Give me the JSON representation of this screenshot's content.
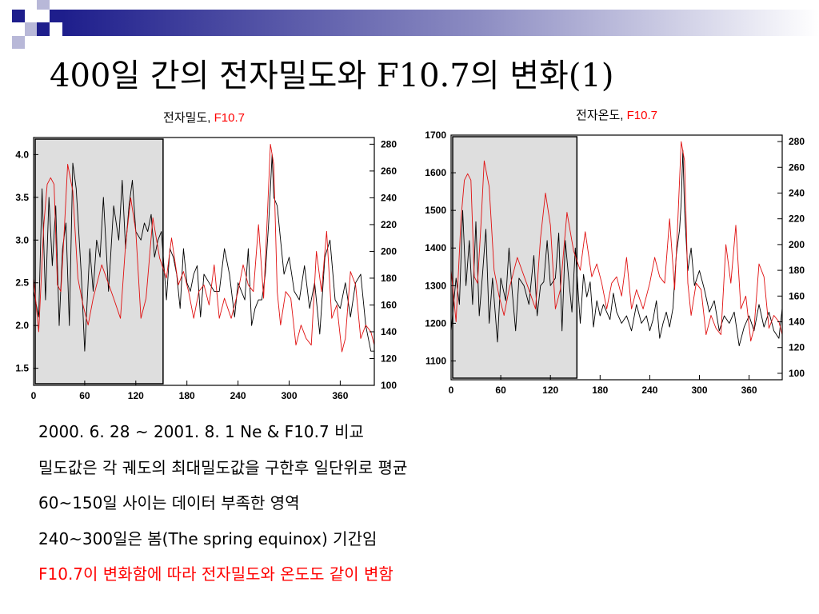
{
  "slide": {
    "title": "400일 간의 전자밀도와 F10.7의 변화(1)",
    "bullets": [
      {
        "text": "2000. 6. 28 ~ 2001. 8. 1 Ne & F10.7 비교",
        "color": "#000000"
      },
      {
        "text": "밀도값은 각 궤도의 최대밀도값을 구한후 일단위로 평균",
        "color": "#000000"
      },
      {
        "text": "60~150일 사이는 데이터 부족한 영역",
        "color": "#000000"
      },
      {
        "text": "240~300일은 봄(The spring equinox) 기간임",
        "color": "#000000"
      },
      {
        "text": "F10.7이 변화함에 따라 전자밀도와 온도도 같이 변함",
        "color": "#ff0000"
      }
    ]
  },
  "chart_data": [
    {
      "type": "line",
      "title_parts": [
        {
          "text": "전자밀도, ",
          "color": "#000000"
        },
        {
          "text": "F10.7",
          "color": "#ff0000"
        }
      ],
      "xlim": [
        0,
        400
      ],
      "ylim_left": [
        1.3,
        4.2
      ],
      "ylim_right": [
        100,
        285
      ],
      "x_ticks": [
        0,
        60,
        120,
        180,
        240,
        300,
        360
      ],
      "y_ticks_left": [
        1.5,
        2.0,
        2.5,
        3.0,
        3.5,
        4.0
      ],
      "y_tick_labels_left": [
        "1.5",
        "2.0",
        "2.5",
        "3.0",
        "3.5",
        "4.0"
      ],
      "y_ticks_right": [
        100,
        120,
        140,
        160,
        180,
        200,
        220,
        240,
        260,
        280
      ],
      "shaded_x": [
        0,
        152
      ],
      "shade_color": "#dedede",
      "series": [
        {
          "axis": "left",
          "color": "#000000",
          "x": [
            0,
            6,
            10,
            14,
            18,
            22,
            26,
            30,
            34,
            38,
            42,
            46,
            50,
            56,
            60,
            66,
            70,
            74,
            78,
            82,
            88,
            94,
            100,
            104,
            108,
            112,
            116,
            120,
            126,
            130,
            134,
            138,
            142,
            146,
            150,
            156,
            160,
            164,
            168,
            172,
            176,
            180,
            184,
            188,
            192,
            196,
            200,
            206,
            212,
            218,
            224,
            230,
            236,
            240,
            244,
            248,
            252,
            256,
            260,
            264,
            268,
            272,
            276,
            278,
            280,
            282,
            286,
            290,
            294,
            300,
            306,
            312,
            318,
            324,
            330,
            336,
            342,
            348,
            354,
            360,
            366,
            372,
            378,
            384,
            390,
            396,
            400
          ],
          "y": [
            2.4,
            2.1,
            3.6,
            2.3,
            3.5,
            2.7,
            3.4,
            2.0,
            2.9,
            3.2,
            2.0,
            3.9,
            3.6,
            2.6,
            1.7,
            2.9,
            2.4,
            3.0,
            2.8,
            3.5,
            2.4,
            3.4,
            3.0,
            3.7,
            2.9,
            3.4,
            3.7,
            3.1,
            3.0,
            3.2,
            3.1,
            3.3,
            2.8,
            3.0,
            3.1,
            2.3,
            2.9,
            2.8,
            2.6,
            2.2,
            2.9,
            2.5,
            2.4,
            2.6,
            2.7,
            2.1,
            2.6,
            2.5,
            2.4,
            2.4,
            2.9,
            2.6,
            2.1,
            2.5,
            2.4,
            2.3,
            2.9,
            2.0,
            2.2,
            2.3,
            2.3,
            2.6,
            3.2,
            3.6,
            4.0,
            3.5,
            3.4,
            3.0,
            2.6,
            2.8,
            2.4,
            2.3,
            2.7,
            2.2,
            2.5,
            1.9,
            2.8,
            3.0,
            2.3,
            2.2,
            2.5,
            2.1,
            2.5,
            2.6,
            2.0,
            1.7,
            1.7
          ]
        },
        {
          "axis": "right",
          "color": "#e01010",
          "x": [
            0,
            6,
            12,
            16,
            20,
            24,
            28,
            32,
            36,
            40,
            46,
            52,
            58,
            64,
            70,
            80,
            94,
            102,
            108,
            114,
            120,
            126,
            132,
            140,
            148,
            156,
            162,
            170,
            176,
            182,
            188,
            194,
            200,
            206,
            212,
            218,
            224,
            232,
            240,
            246,
            252,
            258,
            264,
            270,
            274,
            278,
            282,
            286,
            290,
            296,
            302,
            308,
            314,
            320,
            326,
            332,
            338,
            344,
            350,
            356,
            362,
            366,
            372,
            378,
            384,
            390,
            396,
            400
          ],
          "y": [
            180,
            140,
            220,
            250,
            255,
            250,
            175,
            170,
            215,
            265,
            245,
            180,
            160,
            145,
            165,
            190,
            165,
            150,
            205,
            240,
            215,
            150,
            165,
            225,
            195,
            180,
            210,
            175,
            185,
            170,
            150,
            170,
            175,
            160,
            190,
            150,
            165,
            150,
            170,
            190,
            175,
            170,
            220,
            165,
            220,
            280,
            265,
            170,
            145,
            170,
            165,
            130,
            145,
            135,
            130,
            200,
            170,
            215,
            150,
            160,
            125,
            135,
            185,
            175,
            135,
            145,
            140,
            130
          ]
        }
      ]
    },
    {
      "type": "line",
      "title_parts": [
        {
          "text": "전자온도, ",
          "color": "#000000"
        },
        {
          "text": "F10.7",
          "color": "#ff0000"
        }
      ],
      "xlim": [
        0,
        400
      ],
      "ylim_left": [
        1050,
        1700
      ],
      "ylim_right": [
        95,
        285
      ],
      "x_ticks": [
        0,
        60,
        120,
        180,
        240,
        300,
        360
      ],
      "y_ticks_left": [
        1100,
        1200,
        1300,
        1400,
        1500,
        1600,
        1700
      ],
      "y_tick_labels_left": [
        "1100",
        "1200",
        "1300",
        "1400",
        "1500",
        "1600",
        "1700"
      ],
      "y_ticks_right": [
        100,
        120,
        140,
        160,
        180,
        200,
        220,
        240,
        260,
        280
      ],
      "shaded_x": [
        0,
        152
      ],
      "shade_color": "#dedede",
      "series": [
        {
          "axis": "left",
          "color": "#000000",
          "x": [
            0,
            6,
            10,
            14,
            18,
            22,
            26,
            30,
            34,
            38,
            42,
            46,
            50,
            56,
            60,
            66,
            70,
            74,
            78,
            82,
            88,
            94,
            100,
            104,
            108,
            112,
            116,
            120,
            126,
            130,
            134,
            138,
            142,
            146,
            150,
            156,
            160,
            164,
            168,
            172,
            176,
            180,
            184,
            188,
            192,
            196,
            200,
            206,
            212,
            218,
            224,
            230,
            236,
            240,
            244,
            248,
            252,
            256,
            260,
            264,
            268,
            272,
            276,
            278,
            280,
            282,
            286,
            290,
            294,
            300,
            306,
            312,
            318,
            324,
            330,
            336,
            342,
            348,
            354,
            360,
            366,
            372,
            378,
            384,
            390,
            396,
            400
          ],
          "y": [
            1180,
            1320,
            1250,
            1500,
            1300,
            1420,
            1250,
            1470,
            1220,
            1330,
            1450,
            1200,
            1320,
            1150,
            1320,
            1260,
            1400,
            1280,
            1180,
            1320,
            1300,
            1250,
            1380,
            1220,
            1300,
            1310,
            1420,
            1300,
            1320,
            1440,
            1180,
            1420,
            1320,
            1230,
            1400,
            1200,
            1330,
            1270,
            1310,
            1190,
            1260,
            1220,
            1250,
            1230,
            1210,
            1280,
            1230,
            1200,
            1220,
            1180,
            1250,
            1200,
            1220,
            1180,
            1210,
            1260,
            1160,
            1200,
            1230,
            1190,
            1240,
            1380,
            1450,
            1520,
            1660,
            1500,
            1340,
            1400,
            1300,
            1340,
            1290,
            1230,
            1260,
            1180,
            1220,
            1200,
            1230,
            1140,
            1190,
            1220,
            1180,
            1250,
            1190,
            1230,
            1180,
            1160,
            1240
          ]
        },
        {
          "axis": "right",
          "color": "#e01010",
          "x": [
            0,
            6,
            12,
            16,
            20,
            24,
            28,
            32,
            36,
            40,
            46,
            52,
            58,
            64,
            70,
            80,
            94,
            102,
            108,
            114,
            120,
            126,
            132,
            140,
            148,
            156,
            162,
            170,
            176,
            182,
            188,
            194,
            200,
            206,
            212,
            218,
            224,
            232,
            240,
            246,
            252,
            258,
            264,
            270,
            274,
            278,
            282,
            286,
            290,
            296,
            302,
            308,
            314,
            320,
            326,
            332,
            338,
            344,
            350,
            356,
            362,
            366,
            372,
            378,
            384,
            390,
            396,
            400
          ],
          "y": [
            180,
            140,
            220,
            250,
            255,
            250,
            175,
            170,
            215,
            265,
            245,
            180,
            160,
            145,
            165,
            190,
            165,
            150,
            205,
            240,
            215,
            150,
            165,
            225,
            195,
            180,
            210,
            175,
            185,
            170,
            150,
            170,
            175,
            160,
            190,
            150,
            165,
            150,
            170,
            190,
            175,
            170,
            220,
            165,
            220,
            280,
            265,
            170,
            145,
            170,
            165,
            130,
            145,
            135,
            130,
            200,
            170,
            215,
            150,
            160,
            125,
            135,
            185,
            175,
            135,
            145,
            140,
            130
          ]
        }
      ]
    }
  ]
}
